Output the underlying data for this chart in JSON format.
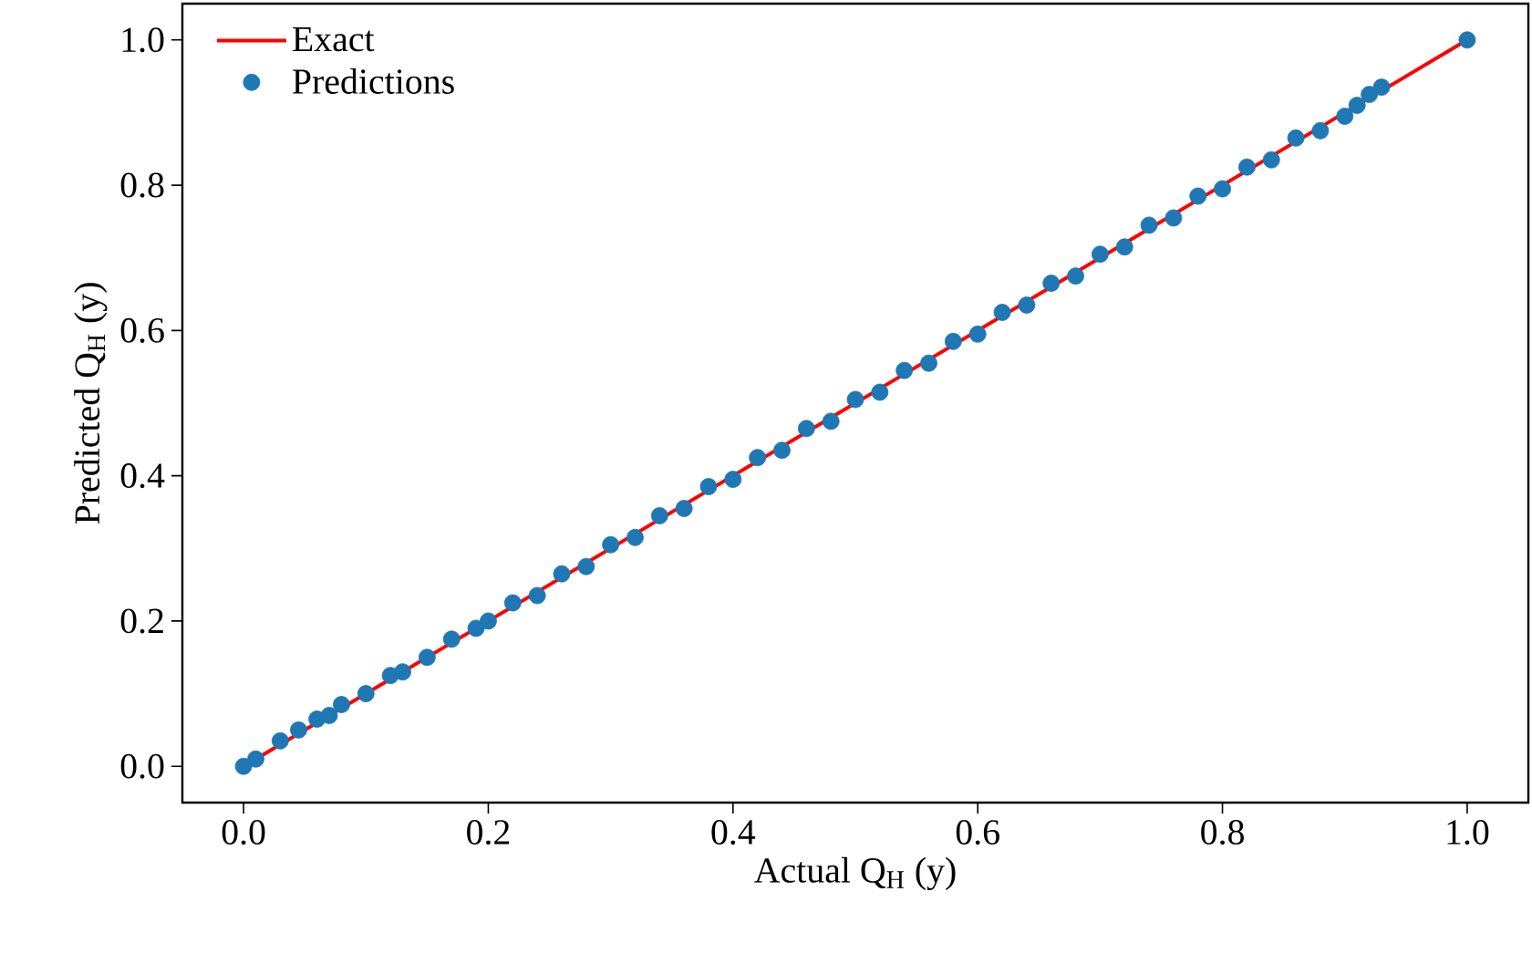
{
  "chart_data": {
    "type": "scatter",
    "xlabel": "Actual Q$_{H}$ (y)",
    "ylabel": "Predicted Q$_{H}$ (y)",
    "xlim": [
      -0.05,
      1.05
    ],
    "ylim": [
      -0.05,
      1.05
    ],
    "xticks": [
      {
        "value": 0,
        "label": "0.0"
      },
      {
        "value": 0.2,
        "label": "0.2"
      },
      {
        "value": 0.4,
        "label": "0.4"
      },
      {
        "value": 0.6,
        "label": "0.6"
      },
      {
        "value": 0.8,
        "label": "0.8"
      },
      {
        "value": 1,
        "label": "1.0"
      }
    ],
    "yticks": [
      {
        "value": 0,
        "label": "0.0"
      },
      {
        "value": 0.2,
        "label": "0.2"
      },
      {
        "value": 0.4,
        "label": "0.4"
      },
      {
        "value": 0.6,
        "label": "0.6"
      },
      {
        "value": 0.8,
        "label": "0.8"
      },
      {
        "value": 1,
        "label": "1.0"
      }
    ],
    "legend": "top left",
    "grid": false,
    "marker": "circle",
    "series": [
      {
        "name": "Exact",
        "type": "line",
        "color": "#ff0000",
        "marker": "none",
        "line_style": "solid",
        "x": [
          0,
          1
        ],
        "values": [
          0,
          1
        ]
      },
      {
        "name": "Predictions",
        "type": "scatter",
        "color": "#1f77b4",
        "x": [
          0,
          0.01,
          0.03,
          0.045,
          0.06,
          0.07,
          0.08,
          0.1,
          0.12,
          0.13,
          0.15,
          0.17,
          0.19,
          0.2,
          0.22,
          0.24,
          0.26,
          0.28,
          0.3,
          0.32,
          0.34,
          0.36,
          0.38,
          0.4,
          0.42,
          0.44,
          0.46,
          0.48,
          0.5,
          0.52,
          0.54,
          0.56,
          0.58,
          0.6,
          0.62,
          0.64,
          0.66,
          0.68,
          0.7,
          0.72,
          0.74,
          0.76,
          0.78,
          0.8,
          0.82,
          0.84,
          0.86,
          0.88,
          0.9,
          0.91,
          0.92,
          0.93,
          1.0
        ],
        "values": [
          0,
          0.01,
          0.035,
          0.05,
          0.065,
          0.07,
          0.085,
          0.1,
          0.125,
          0.13,
          0.15,
          0.175,
          0.19,
          0.2,
          0.225,
          0.235,
          0.265,
          0.275,
          0.305,
          0.315,
          0.345,
          0.355,
          0.385,
          0.395,
          0.425,
          0.435,
          0.465,
          0.475,
          0.505,
          0.515,
          0.545,
          0.555,
          0.585,
          0.595,
          0.625,
          0.635,
          0.665,
          0.675,
          0.705,
          0.715,
          0.745,
          0.755,
          0.785,
          0.795,
          0.825,
          0.835,
          0.865,
          0.875,
          0.895,
          0.91,
          0.925,
          0.935,
          1.0
        ]
      }
    ]
  }
}
